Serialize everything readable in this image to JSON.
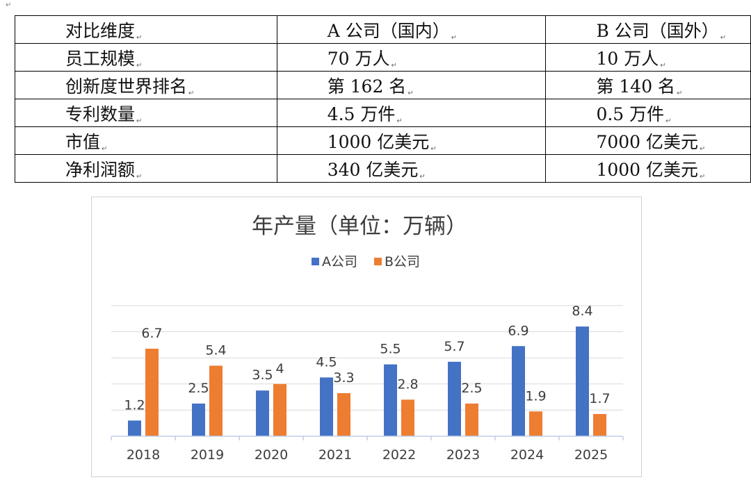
{
  "table": {
    "headers": [
      "对比维度",
      "A 公司（国内）",
      "B 公司（国外）"
    ],
    "rows": [
      [
        "员工规模",
        "70 万人",
        "10 万人"
      ],
      [
        "创新度世界排名",
        "第 162 名",
        "第 140 名"
      ],
      [
        "专利数量",
        "4.5 万件",
        "0.5 万件"
      ],
      [
        "市值",
        "1000 亿美元",
        "7000 亿美元"
      ],
      [
        "净利润额",
        "340 亿美元",
        "1000 亿美元"
      ]
    ]
  },
  "chart_data": {
    "type": "bar",
    "title": "年产量（单位：万辆）",
    "categories": [
      "2018",
      "2019",
      "2020",
      "2021",
      "2022",
      "2023",
      "2024",
      "2025"
    ],
    "series": [
      {
        "name": "A公司",
        "color": "#4472C4",
        "values": [
          1.2,
          2.5,
          3.5,
          4.5,
          5.5,
          5.7,
          6.9,
          8.4
        ],
        "labels": [
          "1.2",
          "2.5",
          "3.5",
          "4.5",
          "5.5",
          "5.7",
          "6.9",
          "8.4"
        ]
      },
      {
        "name": "B公司",
        "color": "#ED7D31",
        "values": [
          6.7,
          5.4,
          4,
          3.3,
          2.8,
          2.5,
          1.9,
          1.7
        ],
        "labels": [
          "6.7",
          "5.4",
          "4",
          "3.3",
          "2.8",
          "2.5",
          "1.9",
          "1.7"
        ]
      }
    ],
    "ylim": [
      0,
      10
    ],
    "grid": true,
    "legend": "top"
  }
}
